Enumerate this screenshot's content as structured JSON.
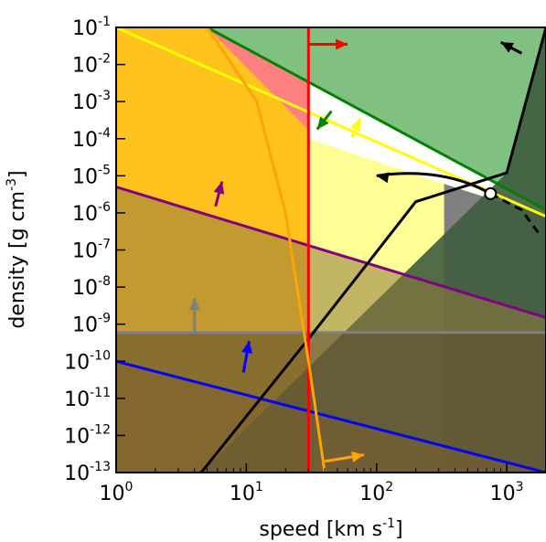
{
  "chart_data": {
    "type": "area",
    "xlabel": "speed [km s",
    "xlabel_sup": "-1",
    "xlabel_end": "]",
    "ylabel": "density [g cm",
    "ylabel_sup": "-3",
    "ylabel_end": "]",
    "x_scale": "log",
    "y_scale": "log",
    "xlim": [
      1,
      2000
    ],
    "ylim": [
      1e-13,
      0.1
    ],
    "grid": false,
    "x_ticks": [
      {
        "base": "10",
        "exp": "0",
        "value": 1
      },
      {
        "base": "10",
        "exp": "1",
        "value": 10
      },
      {
        "base": "10",
        "exp": "2",
        "value": 100
      },
      {
        "base": "10",
        "exp": "3",
        "value": 1000
      }
    ],
    "y_ticks": [
      {
        "base": "10",
        "exp": "-13",
        "value": 1e-13
      },
      {
        "base": "10",
        "exp": "-12",
        "value": 1e-12
      },
      {
        "base": "10",
        "exp": "-11",
        "value": 1e-11
      },
      {
        "base": "10",
        "exp": "-10",
        "value": 1e-10
      },
      {
        "base": "10",
        "exp": "-9",
        "value": 1e-09
      },
      {
        "base": "10",
        "exp": "-8",
        "value": 1e-08
      },
      {
        "base": "10",
        "exp": "-7",
        "value": 1e-07
      },
      {
        "base": "10",
        "exp": "-6",
        "value": 1e-06
      },
      {
        "base": "10",
        "exp": "-5",
        "value": 1e-05
      },
      {
        "base": "10",
        "exp": "-4",
        "value": 0.0001
      },
      {
        "base": "10",
        "exp": "-3",
        "value": 0.001
      },
      {
        "base": "10",
        "exp": "-2",
        "value": 0.01
      },
      {
        "base": "10",
        "exp": "-1",
        "value": 0.1
      }
    ],
    "regions": [
      {
        "color": "#FFC21F",
        "points": [
          [
            1,
            0.1
          ],
          [
            30,
            0.1
          ],
          [
            30,
            1e-13
          ],
          [
            1,
            1e-13
          ]
        ]
      },
      {
        "color": "#FF8080",
        "points": [
          [
            5,
            0.1
          ],
          [
            30,
            0.1
          ],
          [
            30,
            0.00017
          ]
        ]
      },
      {
        "color": "#FFFFFF",
        "points": [
          [
            30,
            0.00017
          ],
          [
            330,
            1e-05
          ],
          [
            30,
            0.00021
          ]
        ]
      },
      {
        "color": "#FFFF96",
        "points": [
          [
            30,
            0.0001
          ],
          [
            330,
            6e-06
          ],
          [
            2000,
            8e-07
          ],
          [
            2000,
            1e-13
          ],
          [
            30,
            1e-13
          ]
        ]
      },
      {
        "color": "#80C080",
        "points": [
          [
            5,
            0.1
          ],
          [
            2000,
            0.1
          ],
          [
            2000,
            1.2e-06
          ]
        ]
      },
      {
        "color": "#808080",
        "points": [
          [
            330,
            6e-06
          ],
          [
            2000,
            8e-07
          ],
          [
            2000,
            1e-13
          ],
          [
            330,
            1e-13
          ]
        ]
      },
      {
        "color": "#3E5C3E",
        "opacity": 0.9,
        "points": [
          [
            2000,
            0.1
          ],
          [
            2000,
            1e-13
          ],
          [
            4.5,
            1e-13
          ],
          [
            1000,
            1.2e-05
          ],
          [
            1700,
            0.01
          ]
        ]
      },
      {
        "color": "#907A3C",
        "opacity": 0.55,
        "points": [
          [
            1,
            5e-06
          ],
          [
            2000,
            1.5e-09
          ],
          [
            2000,
            1e-13
          ],
          [
            1,
            1e-13
          ]
        ]
      },
      {
        "color": "#5A4A30",
        "opacity": 0.55,
        "points": [
          [
            1,
            6e-10
          ],
          [
            2000,
            6e-10
          ],
          [
            2000,
            1e-13
          ],
          [
            1,
            1e-13
          ]
        ]
      },
      {
        "color": "#806030",
        "opacity": 0.45,
        "points": [
          [
            1,
            1e-10
          ],
          [
            2000,
            1e-13
          ],
          [
            1,
            1e-13
          ]
        ]
      }
    ],
    "series": [
      {
        "color": "#008000",
        "points": [
          [
            5,
            0.1
          ],
          [
            2000,
            1.2e-06
          ]
        ]
      },
      {
        "color": "#FFFF00",
        "points": [
          [
            1,
            0.1
          ],
          [
            2000,
            8e-07
          ]
        ]
      },
      {
        "color": "#800080",
        "points": [
          [
            1,
            5e-06
          ],
          [
            2000,
            1.5e-09
          ]
        ]
      },
      {
        "color": "#808080",
        "points": [
          [
            1,
            6e-10
          ],
          [
            2000,
            6e-10
          ]
        ]
      },
      {
        "color": "#0000FF",
        "points": [
          [
            1,
            1e-10
          ],
          [
            2000,
            1e-13
          ]
        ]
      },
      {
        "color": "#000000",
        "points": [
          [
            4.5,
            1e-13
          ],
          [
            30,
            4e-10
          ],
          [
            200,
            2e-06
          ],
          [
            1000,
            1.2e-05
          ],
          [
            2000,
            0.1
          ]
        ]
      },
      {
        "color": "#FF0000",
        "points": [
          [
            30,
            0.1
          ],
          [
            30,
            1e-13
          ]
        ]
      },
      {
        "color": "#FFA500",
        "points": [
          [
            5,
            0.1
          ],
          [
            12,
            0.001
          ],
          [
            20,
            1e-06
          ],
          [
            30,
            1e-10
          ],
          [
            40,
            1e-13
          ]
        ]
      }
    ],
    "marker": {
      "x": 750,
      "y": 3.3e-06
    },
    "arrows": [
      {
        "color": "#FF0000",
        "from": [
          30,
          0.035
        ],
        "to": [
          60,
          0.035
        ]
      },
      {
        "color": "#008000",
        "from": [
          45,
          0.00055
        ],
        "to": [
          35,
          0.00018
        ]
      },
      {
        "color": "#FFFF00",
        "from": [
          65,
          0.00011
        ],
        "to": [
          75,
          0.00035
        ]
      },
      {
        "color": "#000000",
        "from": [
          1300,
          0.02
        ],
        "to": [
          900,
          0.04
        ]
      },
      {
        "color": "#000000",
        "from": [
          750,
          3.3e-06
        ],
        "to": [
          100,
          1e-05
        ],
        "curved": true
      },
      {
        "color": "#800080",
        "from": [
          5.8,
          1.5e-06
        ],
        "to": [
          6.5,
          7e-06
        ]
      },
      {
        "color": "#808080",
        "from": [
          4,
          6e-10
        ],
        "to": [
          4,
          5e-09
        ]
      },
      {
        "color": "#0000FF",
        "from": [
          9.5,
          5e-11
        ],
        "to": [
          10.5,
          3.5e-10
        ]
      },
      {
        "color": "#FFA500",
        "from": [
          40,
          2e-13
        ],
        "to": [
          80,
          3e-13
        ]
      }
    ],
    "dashed_path": {
      "color": "#000000",
      "points": [
        [
          750,
          3.3e-06
        ],
        [
          1300,
          1.2e-06
        ],
        [
          1800,
          2.5e-07
        ]
      ]
    }
  }
}
